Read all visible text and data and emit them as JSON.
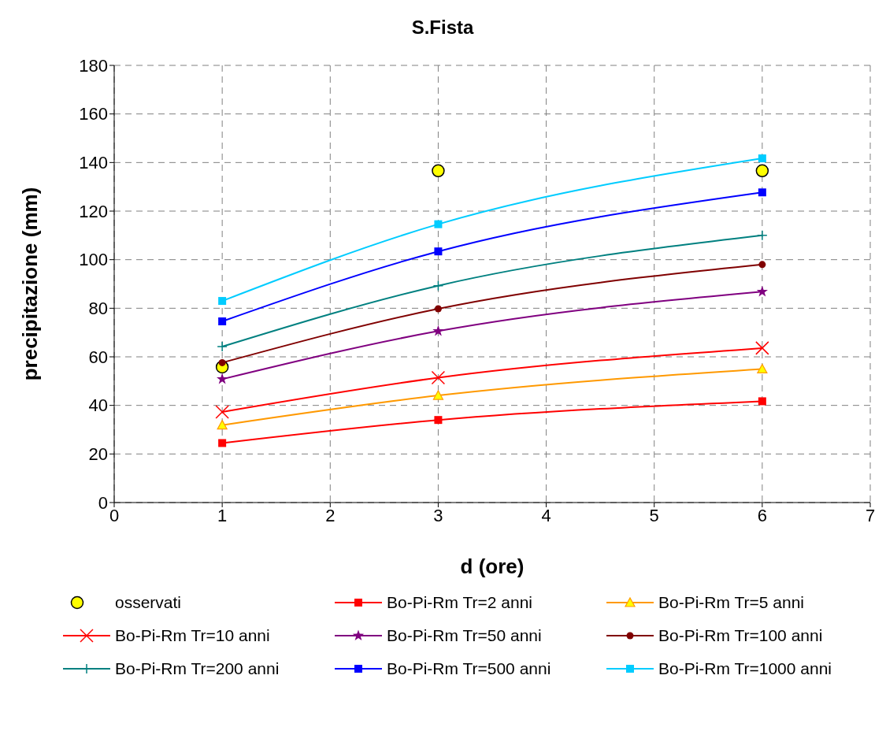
{
  "chart_data": {
    "type": "line",
    "title": "S.Fista",
    "xlabel": "d (ore)",
    "ylabel": "precipitazione (mm)",
    "xlim": [
      0,
      7
    ],
    "xticks": [
      0,
      1,
      2,
      3,
      4,
      5,
      6,
      7
    ],
    "ylim": [
      0,
      180
    ],
    "yticks": [
      0,
      20,
      40,
      60,
      80,
      100,
      120,
      140,
      160,
      180
    ],
    "grid": true,
    "legend": "bottom",
    "x": [
      1,
      3,
      6
    ],
    "series": [
      {
        "name": "osservati",
        "type": "scatter",
        "color": "#ffff00",
        "marker": "circle",
        "values": [
          55.8,
          136.6,
          136.6
        ]
      },
      {
        "name": "Bo-Pi-Rm Tr=2 anni",
        "color": "#ff0000",
        "marker": "square",
        "values": [
          24.5,
          34.0,
          41.7
        ]
      },
      {
        "name": "Bo-Pi-Rm Tr=5 anni",
        "color": "#ff9900",
        "marker": "triangle",
        "values": [
          31.9,
          44.1,
          55.0
        ]
      },
      {
        "name": "Bo-Pi-Rm Tr=10 anni",
        "color": "#ff0000",
        "marker": "cross",
        "values": [
          37.3,
          51.4,
          63.6
        ]
      },
      {
        "name": "Bo-Pi-Rm Tr=50 anni",
        "color": "#800080",
        "marker": "star",
        "values": [
          50.8,
          70.6,
          86.8
        ]
      },
      {
        "name": "Bo-Pi-Rm Tr=100 anni",
        "color": "#800000",
        "marker": "circle",
        "values": [
          57.6,
          79.8,
          98.0
        ]
      },
      {
        "name": "Bo-Pi-Rm Tr=200 anni",
        "color": "#008080",
        "marker": "plus",
        "values": [
          64.2,
          89.3,
          110.0
        ]
      },
      {
        "name": "Bo-Pi-Rm Tr=500 anni",
        "color": "#0000ff",
        "marker": "square",
        "values": [
          74.6,
          103.4,
          127.7
        ]
      },
      {
        "name": "Bo-Pi-Rm Tr=1000 anni",
        "color": "#00ccff",
        "marker": "square",
        "values": [
          83.0,
          114.6,
          141.7
        ]
      }
    ]
  }
}
